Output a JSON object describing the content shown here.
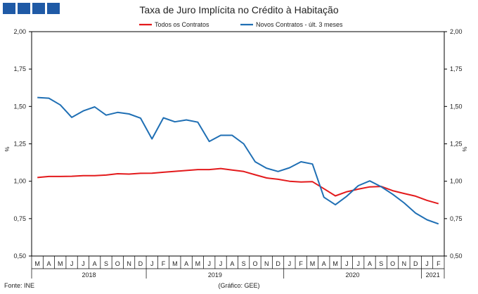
{
  "logo_icon": "ine-logo-icon",
  "source": "Fonte: INE",
  "note": "(Gráfico: GEE)",
  "chart_data": {
    "type": "line",
    "title": "Taxa de Juro Implícita no Crédito à Habitação",
    "ylabel": "%",
    "ylabel_right": "%",
    "ylim": [
      0.5,
      2.0
    ],
    "yticks": [
      "2,00",
      "1,75",
      "1,50",
      "1,25",
      "1,00",
      "0,75",
      "0,50"
    ],
    "grid": false,
    "legend_position": "top-center",
    "months": [
      "M",
      "A",
      "M",
      "J",
      "J",
      "A",
      "S",
      "O",
      "N",
      "D",
      "J",
      "F",
      "M",
      "A",
      "M",
      "J",
      "J",
      "A",
      "S",
      "O",
      "N",
      "D",
      "J",
      "F",
      "M",
      "A",
      "M",
      "J",
      "J",
      "A",
      "S",
      "O",
      "N",
      "D",
      "J",
      "F"
    ],
    "years": [
      {
        "label": "2018",
        "start": 0,
        "end": 9
      },
      {
        "label": "2019",
        "start": 10,
        "end": 21
      },
      {
        "label": "2020",
        "start": 22,
        "end": 33
      },
      {
        "label": "2021",
        "start": 34,
        "end": 35
      }
    ],
    "series": [
      {
        "name": "Todos os Contratos",
        "color": "#e31a1c",
        "values": [
          1.025,
          1.032,
          1.032,
          1.033,
          1.037,
          1.037,
          1.041,
          1.05,
          1.048,
          1.053,
          1.054,
          1.06,
          1.066,
          1.072,
          1.078,
          1.078,
          1.085,
          1.075,
          1.065,
          1.043,
          1.022,
          1.013,
          1.0,
          0.995,
          0.997,
          0.95,
          0.902,
          0.93,
          0.947,
          0.962,
          0.965,
          0.937,
          0.918,
          0.9,
          0.872,
          0.85
        ]
      },
      {
        "name": "Novos Contratos - últ. 3 meses",
        "color": "#1f6fb4",
        "values": [
          1.56,
          1.555,
          1.51,
          1.427,
          1.47,
          1.497,
          1.442,
          1.46,
          1.45,
          1.422,
          1.283,
          1.424,
          1.397,
          1.41,
          1.395,
          1.266,
          1.307,
          1.307,
          1.25,
          1.13,
          1.087,
          1.065,
          1.09,
          1.13,
          1.115,
          0.893,
          0.843,
          0.9,
          0.97,
          1.002,
          0.963,
          0.913,
          0.855,
          0.787,
          0.742,
          0.715
        ]
      }
    ]
  }
}
